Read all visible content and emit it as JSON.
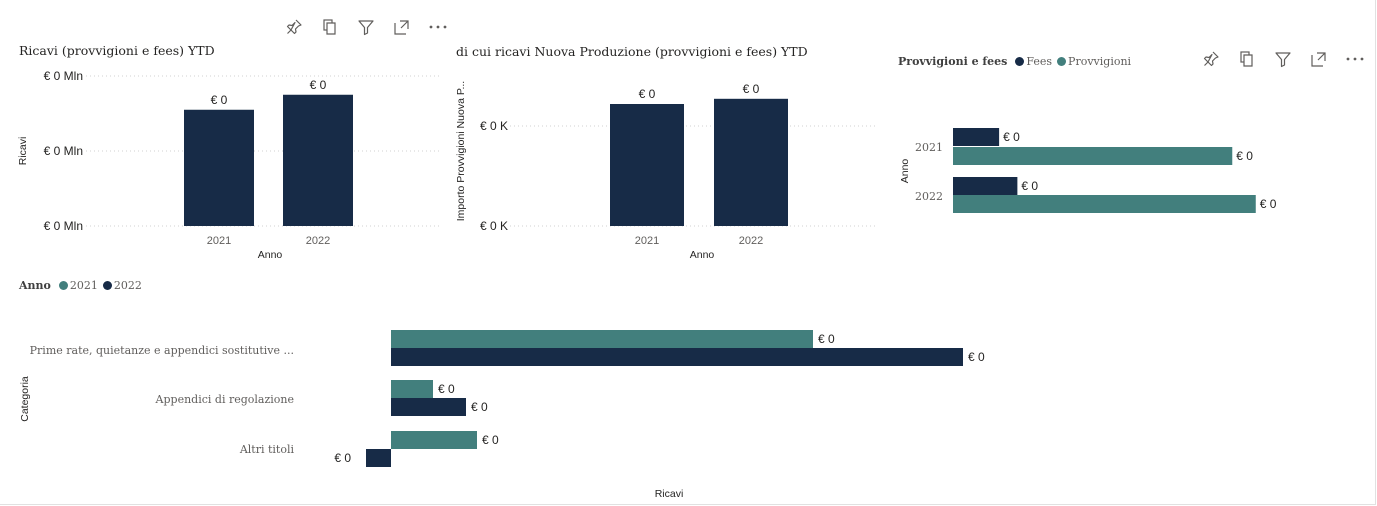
{
  "toolbar_icons": [
    "pin-icon",
    "copy-icon",
    "filter-icon",
    "focus-mode-icon",
    "more-options-icon"
  ],
  "colors": {
    "navy": "#172b47",
    "teal": "#427f7d",
    "grid": "#d0d0d0",
    "axis_text": "#605e5c"
  },
  "chart_data": [
    {
      "type": "bar",
      "title": "Ricavi (provvigioni e fees) YTD",
      "xlabel": "Anno",
      "ylabel": "Ricavi",
      "categories": [
        "2021",
        "2022"
      ],
      "values": [
        0.00155,
        0.00175
      ],
      "data_labels": [
        "€ 0",
        "€ 0"
      ],
      "ylim": [
        0,
        0.002
      ],
      "yticks": [
        0,
        0.001,
        0.002
      ],
      "ytick_labels": [
        "€ 0 Mln",
        "€ 0 Mln",
        "€ 0 Mln"
      ],
      "grid": true,
      "color": "#172b47"
    },
    {
      "type": "bar",
      "title": "di cui ricavi Nuova Produzione (provvigioni e fees) YTD",
      "xlabel": "Anno",
      "ylabel": "Importo Provvigioni Nuova P...",
      "categories": [
        "2021",
        "2022"
      ],
      "values": [
        0.000305,
        0.000318
      ],
      "data_labels": [
        "€ 0",
        "€ 0"
      ],
      "ylim": [
        0,
        0.0004
      ],
      "yticks": [
        0,
        0.00025
      ],
      "ytick_labels": [
        "€ 0 K",
        "€ 0 K"
      ],
      "grid": true,
      "color": "#172b47"
    },
    {
      "type": "bar",
      "orientation": "horizontal",
      "legend_title": "Provvigioni e fees",
      "legend_position": "top-left",
      "ylabel": "Anno",
      "categories": [
        "2021",
        "2022"
      ],
      "series": [
        {
          "name": "Fees",
          "color": "#172b47",
          "values": [
            53,
            74
          ],
          "data_labels": [
            "€ 0",
            "€ 0"
          ]
        },
        {
          "name": "Provvigioni",
          "color": "#427f7d",
          "values": [
            321,
            348
          ],
          "data_labels": [
            "€ 0",
            "€ 0"
          ]
        }
      ],
      "xlim": [
        0,
        400
      ]
    },
    {
      "type": "bar",
      "orientation": "horizontal",
      "legend_title": "Anno",
      "legend_position": "top-left",
      "xlabel": "Ricavi",
      "ylabel": "Categoria",
      "categories": [
        "Prime rate, quietanze e appendici sostitutive ...",
        "Appendici di regolazione",
        "Altri titoli"
      ],
      "series": [
        {
          "name": "2021",
          "color": "#427f7d",
          "values": [
            422,
            42,
            86
          ],
          "data_labels": [
            "€ 0",
            "€ 0",
            "€ 0"
          ]
        },
        {
          "name": "2022",
          "color": "#172b47",
          "values": [
            572,
            75,
            -25
          ],
          "data_labels": [
            "€ 0",
            "€ 0",
            "€ 0"
          ]
        }
      ],
      "xlim": [
        -30,
        600
      ]
    }
  ]
}
